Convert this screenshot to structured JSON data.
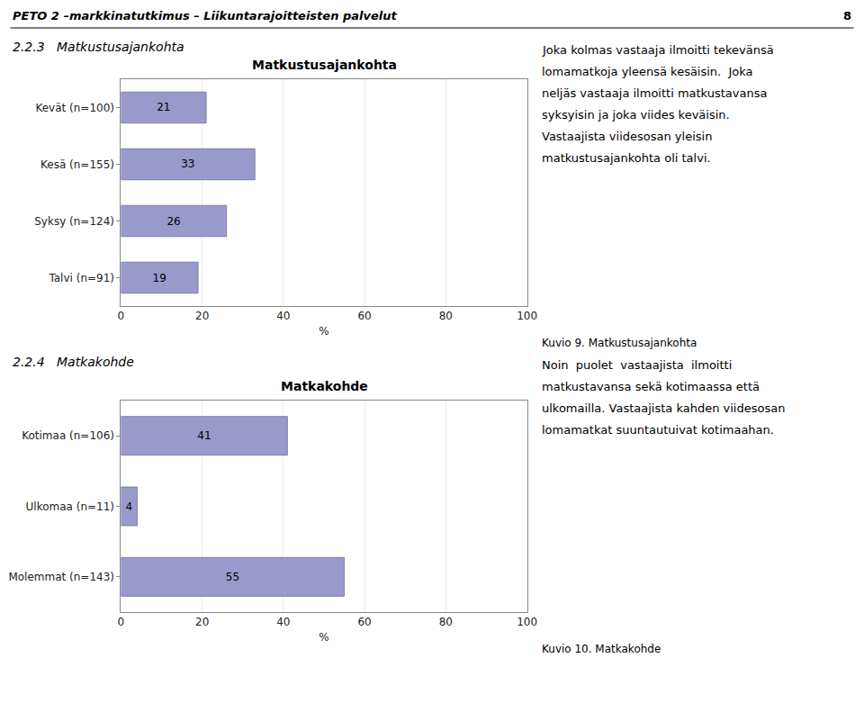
{
  "header": "PETO 2 –markkinatutkimus – Liikuntarajoitteisten palvelut",
  "page_number": "8",
  "chart_data": [
    {
      "type": "bar",
      "orientation": "horizontal",
      "subtitle": "2.2.3   Matkustusajankohta",
      "title": "Matkustusajankohta",
      "categories": [
        "Kevät (n=100)",
        "Kesä (n=155)",
        "Syksy (n=124)",
        "Talvi (n=91)"
      ],
      "values": [
        21,
        33,
        26,
        19
      ],
      "color": "#9999CC",
      "xlabel": "%",
      "xlim": [
        0,
        100
      ],
      "xticks": [
        0,
        20,
        40,
        60,
        80,
        100
      ],
      "grid": true,
      "data_labels": true,
      "annotations": [
        "Joka kolmas vastaaja ilmoitti tekevänsä",
        "lomamatkoja yleensä kesäisin.  Joka",
        "neljäs vastaaja ilmoitti matkustavansa",
        "syksyisin ja joka viides keväisin.",
        "Vastaajista viidesosan yleisin",
        "matkustusajankohta oli talvi."
      ],
      "caption": "Kuvio 9. Matkustusajankohta"
    },
    {
      "type": "bar",
      "orientation": "horizontal",
      "subtitle": "2.2.4   Matkakohde",
      "title": "Matkakohde",
      "categories": [
        "Kotimaa (n=106)",
        "Ulkomaa (n=11)",
        "Molemmat (n=143)"
      ],
      "values": [
        41,
        4,
        55
      ],
      "color": "#9999CC",
      "xlabel": "%",
      "xlim": [
        0,
        100
      ],
      "xticks": [
        0,
        20,
        40,
        60,
        80,
        100
      ],
      "grid": true,
      "data_labels": true,
      "annotations": [
        "Noin  puolet  vastaajista  ilmoitti",
        "matkustavansa sekä kotimaassa että",
        "ulkomailla. Vastaajista kahden viidesosan",
        "lomamatkat suuntautuivat kotimaahan."
      ],
      "caption": "Kuvio 10. Matkakohde"
    }
  ]
}
